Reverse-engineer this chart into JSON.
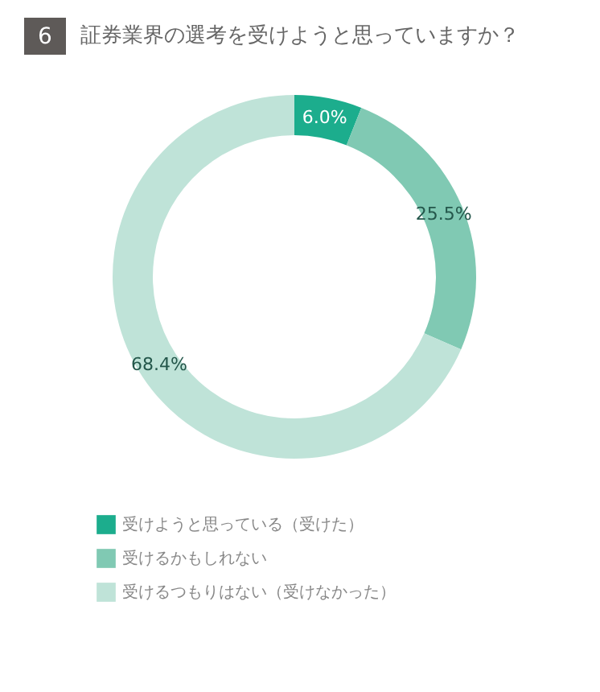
{
  "chart_data": {
    "type": "donut",
    "title": "証券業界の選考を受けようと思っていますか？",
    "annotations": [
      "6"
    ],
    "categories": [
      "受けようと思っている（受けた）",
      "受けるかもしれない",
      "受けるつもりはない（受けなかった）"
    ],
    "values": [
      6.0,
      25.5,
      68.4
    ],
    "value_labels": [
      "6.0%",
      "25.5%",
      "68.4%"
    ],
    "colors": [
      "#1cad8d",
      "#80c9b3",
      "#bfe3d8"
    ],
    "legend": "bottom"
  }
}
